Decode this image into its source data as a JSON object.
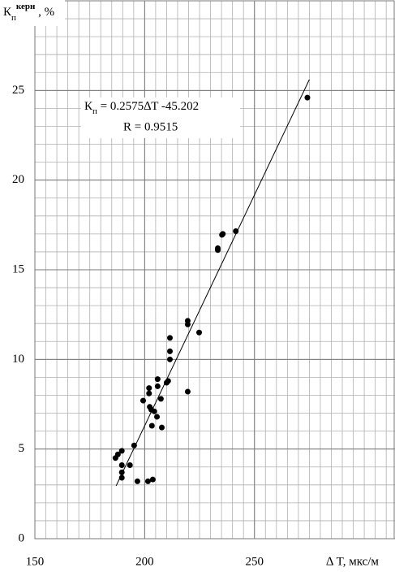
{
  "chart_data": {
    "type": "scatter",
    "y_label": [
      "К",
      "п",
      "керн",
      " , %"
    ],
    "x_label": "∆ T, мкс/м",
    "annotations": [
      [
        "К",
        "п",
        " = 0.2575∆T -45.202"
      ],
      "R = 0.9515"
    ],
    "x": [
      274.1,
      235.6,
      235.2,
      241.5,
      233.3,
      233.3,
      219.6,
      219.6,
      224.8,
      211.5,
      211.5,
      211.5,
      210.7,
      210.0,
      205.9,
      205.9,
      202.0,
      202.0,
      219.6,
      199.3,
      207.4,
      202.3,
      203.0,
      204.4,
      205.6,
      203.3,
      207.8,
      195.2,
      189.6,
      187.8,
      186.7,
      189.6,
      193.3,
      189.6,
      189.6,
      196.7,
      201.5,
      203.7
    ],
    "y": [
      24.6,
      17.0,
      16.95,
      17.15,
      16.2,
      16.1,
      12.15,
      11.95,
      11.5,
      11.2,
      10.45,
      10.0,
      8.8,
      8.7,
      8.9,
      8.5,
      8.4,
      8.1,
      8.2,
      7.7,
      7.8,
      7.35,
      7.2,
      7.1,
      6.8,
      6.3,
      6.2,
      5.2,
      4.9,
      4.7,
      4.5,
      4.1,
      4.1,
      3.7,
      3.4,
      3.2,
      3.2,
      3.3
    ],
    "color": "#000000",
    "fit_line": {
      "x": [
        187,
        275
      ],
      "y": [
        2.95,
        25.61
      ]
    },
    "xlim": [
      150,
      314
    ],
    "ylim": [
      0,
      30
    ],
    "xticks": [
      150,
      200,
      250
    ],
    "yticks": [
      0,
      5,
      10,
      15,
      20,
      25
    ],
    "x_minor_step": 5,
    "y_minor_step": 1,
    "grid": true
  }
}
